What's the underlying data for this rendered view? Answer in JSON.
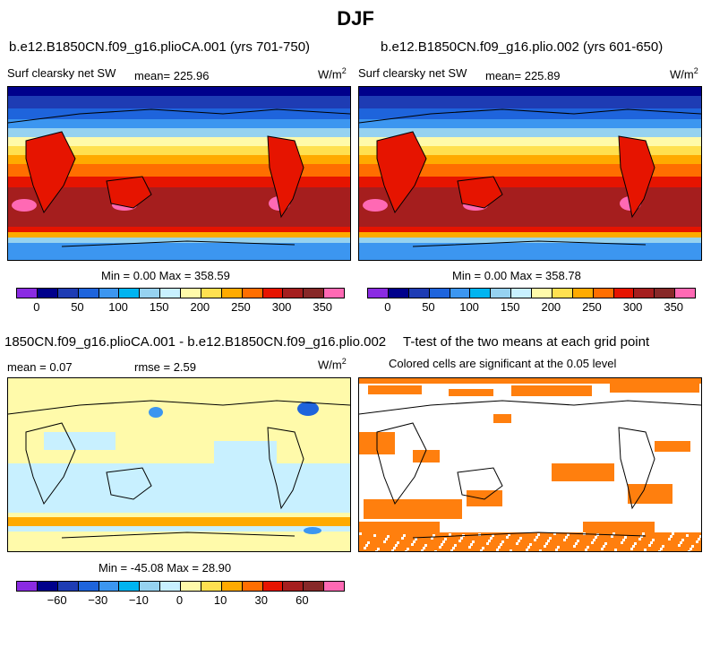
{
  "page_title": "DJF",
  "panels": {
    "top_left": {
      "title": "b.e12.B1850CN.f09_g16.plioCA.001 (yrs 701-750)",
      "variable": "Surf clearsky net SW",
      "mean_text": "mean= 225.96",
      "units": "W/m",
      "units_sup": "2",
      "minmax_text": "Min =    0.00 Max = 358.59"
    },
    "top_right": {
      "title": "b.e12.B1850CN.f09_g16.plio.002 (yrs 601-650)",
      "variable": "Surf clearsky net SW",
      "mean_text": "mean= 225.89",
      "units": "W/m",
      "units_sup": "2",
      "minmax_text": "Min =    0.00 Max = 358.78"
    },
    "bottom_left": {
      "title": "1850CN.f09_g16.plioCA.001 - b.e12.B1850CN.f09_g16.plio.002",
      "mean_text": "mean =    0.07",
      "rmse_text": "rmse =    2.59",
      "units": "W/m",
      "units_sup": "2",
      "minmax_text": "Min = -45.08 Max =  28.90"
    },
    "bottom_right": {
      "title": "T-test of the two means at each grid point",
      "subtitle": "Colored cells are significant at the 0.05 level"
    }
  },
  "colors": {
    "sw_scale": [
      "#8a2be2",
      "#00008b",
      "#1e3cb4",
      "#1e64dc",
      "#3c96f0",
      "#00b4f0",
      "#96d2f0",
      "#c8f0ff",
      "#fffaaa",
      "#ffe050",
      "#ffaa00",
      "#ff6e00",
      "#e61400",
      "#a51e1e",
      "#872828",
      "#ff69b4"
    ],
    "diff_scale": [
      "#8a2be2",
      "#00008b",
      "#1e3cb4",
      "#1e64dc",
      "#3c96f0",
      "#00b4f0",
      "#96d2f0",
      "#c8f0ff",
      "#fffaaa",
      "#ffe050",
      "#ffaa00",
      "#ff6e00",
      "#e61400",
      "#a51e1e",
      "#872828",
      "#ff69b4"
    ],
    "significance": "#ff7f0e"
  },
  "chart_data": [
    {
      "type": "heatmap",
      "title": "b.e12.B1850CN.f09_g16.plioCA.001 (yrs 701-750)",
      "variable": "Surf clearsky net SW",
      "units": "W/m^2",
      "mean": 225.96,
      "min": 0.0,
      "max": 358.59,
      "colorbar_ticks": [
        0,
        50,
        100,
        150,
        200,
        250,
        300,
        350
      ]
    },
    {
      "type": "heatmap",
      "title": "b.e12.B1850CN.f09_g16.plio.002 (yrs 601-650)",
      "variable": "Surf clearsky net SW",
      "units": "W/m^2",
      "mean": 225.89,
      "min": 0.0,
      "max": 358.78,
      "colorbar_ticks": [
        0,
        50,
        100,
        150,
        200,
        250,
        300,
        350
      ]
    },
    {
      "type": "heatmap",
      "title": "1850CN.f09_g16.plioCA.001 - b.e12.B1850CN.f09_g16.plio.002",
      "units": "W/m^2",
      "mean": 0.07,
      "rmse": 2.59,
      "min": -45.08,
      "max": 28.9,
      "colorbar_ticks": [
        -60,
        -30,
        -10,
        0,
        10,
        30,
        60
      ]
    },
    {
      "type": "heatmap",
      "title": "T-test of the two means at each grid point",
      "subtitle": "Colored cells are significant at the 0.05 level"
    }
  ]
}
